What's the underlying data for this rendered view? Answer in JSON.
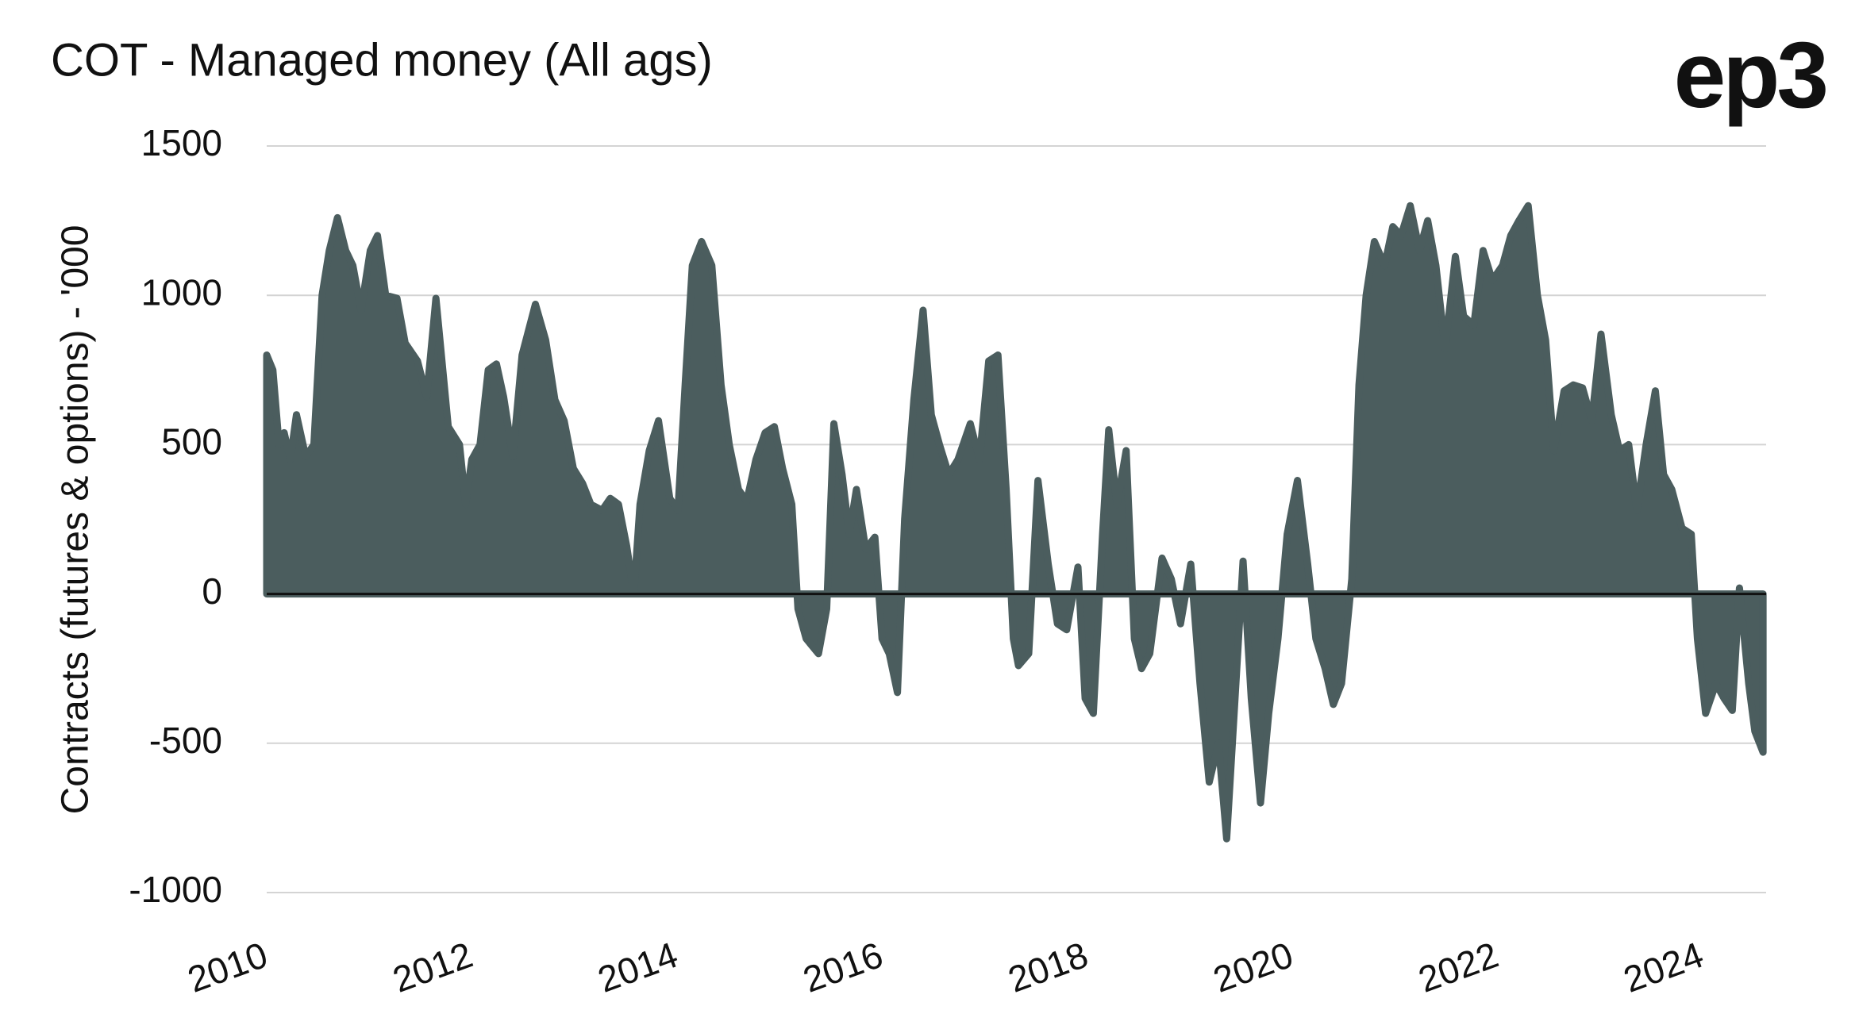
{
  "logo": "ep3",
  "chart_data": {
    "type": "area",
    "title": "COT - Managed money (All ags)",
    "y_label": "Contracts (futures & options) - '000",
    "color": "#4b5d5e",
    "grid": true,
    "xlim": [
      2010,
      2024.62
    ],
    "xticks": [
      2010,
      2012,
      2014,
      2016,
      2018,
      2020,
      2022,
      2024
    ],
    "ylim": [
      -1000,
      1500
    ],
    "yticks": [
      -1000,
      -500,
      0,
      500,
      1000,
      1500
    ],
    "x": [
      2010.0,
      2010.06,
      2010.12,
      2010.17,
      2010.23,
      2010.29,
      2010.38,
      2010.46,
      2010.54,
      2010.61,
      2010.69,
      2010.77,
      2010.84,
      2010.92,
      2011.01,
      2011.08,
      2011.16,
      2011.27,
      2011.35,
      2011.47,
      2011.56,
      2011.65,
      2011.77,
      2011.88,
      2011.94,
      2012.0,
      2012.08,
      2012.16,
      2012.24,
      2012.31,
      2012.4,
      2012.49,
      2012.62,
      2012.72,
      2012.81,
      2012.9,
      2012.99,
      2013.08,
      2013.16,
      2013.27,
      2013.35,
      2013.43,
      2013.51,
      2013.58,
      2013.64,
      2013.73,
      2013.82,
      2013.93,
      2014.01,
      2014.08,
      2014.15,
      2014.24,
      2014.34,
      2014.43,
      2014.51,
      2014.6,
      2014.68,
      2014.77,
      2014.86,
      2014.95,
      2015.03,
      2015.12,
      2015.18,
      2015.26,
      2015.38,
      2015.46,
      2015.53,
      2015.61,
      2015.68,
      2015.75,
      2015.84,
      2015.93,
      2016.0,
      2016.07,
      2016.15,
      2016.22,
      2016.31,
      2016.4,
      2016.48,
      2016.56,
      2016.65,
      2016.74,
      2016.86,
      2016.95,
      2017.04,
      2017.13,
      2017.21,
      2017.28,
      2017.33,
      2017.43,
      2017.52,
      2017.62,
      2017.71,
      2017.8,
      2017.91,
      2017.98,
      2018.06,
      2018.15,
      2018.21,
      2018.29,
      2018.38,
      2018.46,
      2018.53,
      2018.61,
      2018.73,
      2018.82,
      2018.91,
      2019.01,
      2019.1,
      2019.19,
      2019.28,
      2019.36,
      2019.45,
      2019.52,
      2019.6,
      2019.69,
      2019.77,
      2019.86,
      2019.95,
      2020.05,
      2020.15,
      2020.23,
      2020.32,
      2020.4,
      2020.48,
      2020.58,
      2020.65,
      2020.72,
      2020.8,
      2020.9,
      2020.98,
      2021.06,
      2021.15,
      2021.24,
      2021.32,
      2021.4,
      2021.49,
      2021.59,
      2021.67,
      2021.77,
      2021.86,
      2021.95,
      2022.05,
      2022.13,
      2022.21,
      2022.3,
      2022.39,
      2022.47,
      2022.55,
      2022.65,
      2022.74,
      2022.83,
      2022.92,
      2023.01,
      2023.11,
      2023.19,
      2023.28,
      2023.36,
      2023.45,
      2023.54,
      2023.62,
      2023.7,
      2023.8,
      2023.89,
      2023.95,
      2024.03,
      2024.13,
      2024.21,
      2024.29,
      2024.36,
      2024.45,
      2024.51,
      2024.59
    ],
    "values": [
      800,
      750,
      500,
      540,
      450,
      600,
      460,
      500,
      1000,
      1150,
      1260,
      1150,
      1100,
      950,
      1150,
      1200,
      1000,
      990,
      840,
      780,
      660,
      990,
      560,
      500,
      300,
      450,
      500,
      750,
      770,
      660,
      460,
      800,
      970,
      850,
      650,
      580,
      420,
      370,
      300,
      280,
      320,
      300,
      160,
      0,
      300,
      480,
      580,
      320,
      280,
      700,
      1100,
      1180,
      1100,
      700,
      500,
      350,
      310,
      450,
      540,
      560,
      420,
      300,
      -50,
      -150,
      -200,
      -50,
      570,
      400,
      200,
      350,
      150,
      190,
      -150,
      -200,
      -330,
      250,
      650,
      950,
      600,
      500,
      400,
      450,
      570,
      450,
      780,
      800,
      350,
      -150,
      -240,
      -200,
      380,
      100,
      -100,
      -120,
      90,
      -350,
      -400,
      200,
      550,
      300,
      480,
      -150,
      -250,
      -200,
      120,
      50,
      -100,
      100,
      -300,
      -630,
      -500,
      -820,
      -300,
      110,
      -350,
      -700,
      -400,
      -150,
      200,
      380,
      100,
      -150,
      -250,
      -370,
      -300,
      50,
      700,
      1000,
      1180,
      1100,
      1230,
      1200,
      1300,
      1150,
      1250,
      1100,
      820,
      1130,
      930,
      900,
      1150,
      1050,
      1100,
      1200,
      1250,
      1300,
      1000,
      850,
      480,
      680,
      700,
      690,
      580,
      870,
      600,
      480,
      500,
      280,
      500,
      680,
      400,
      350,
      220,
      200,
      -150,
      -400,
      -300,
      -350,
      -390,
      20,
      -300,
      -460,
      -530
    ]
  }
}
